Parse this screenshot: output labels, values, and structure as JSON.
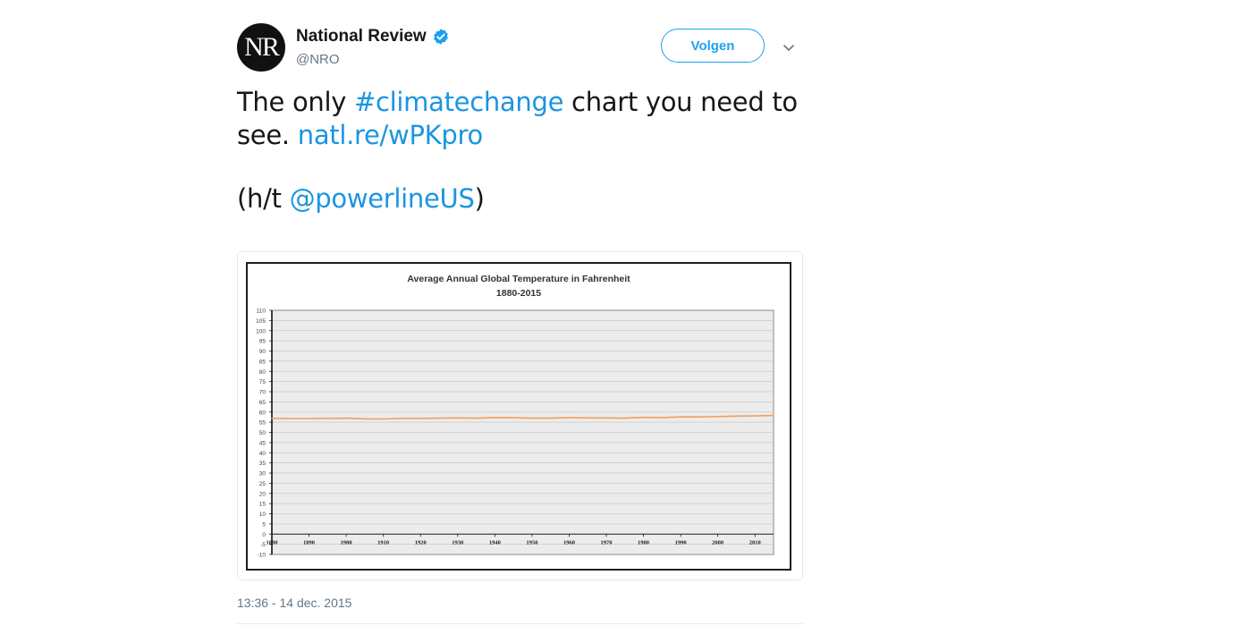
{
  "account": {
    "avatar_text": "NR",
    "display_name": "National Review",
    "handle": "@NRO",
    "verified_icon": "verified-badge-icon"
  },
  "follow_button": {
    "label": "Volgen"
  },
  "menu_icon": "chevron-down-icon",
  "tweet": {
    "line1_prefix": "The only ",
    "line1_hashtag": "#climatechange",
    "line1_suffix": " chart you need to",
    "line2_prefix": "see. ",
    "line2_link": "natl.re/wPKpro",
    "line3_prefix": "(h/t ",
    "line3_mention": "@powerlineUS",
    "line3_suffix": ")"
  },
  "timestamp": "13:36 - 14 dec. 2015",
  "colors": {
    "link": "#1b95e0",
    "follow": "#1da1f2",
    "series": "#f0a060"
  },
  "chart_data": {
    "type": "line",
    "title": "Average Annual Global Temperature in Fahrenheit",
    "subtitle": "1880-2015",
    "xlabel": "",
    "ylabel": "",
    "xlim": [
      1880,
      2015
    ],
    "ylim": [
      -10,
      110
    ],
    "grid": true,
    "x_ticks": [
      1880,
      1890,
      1900,
      1910,
      1920,
      1930,
      1940,
      1950,
      1960,
      1970,
      1980,
      1990,
      2000,
      2010
    ],
    "x_tick_labels": [
      "1880",
      "1890",
      "1900",
      "1910",
      "1920",
      "1930",
      "1940",
      "1950",
      "1960",
      "1970",
      "1980",
      "1990",
      "2000",
      "2010"
    ],
    "y_ticks": [
      -10,
      -5,
      0,
      5,
      10,
      15,
      20,
      25,
      30,
      35,
      40,
      45,
      50,
      55,
      60,
      65,
      70,
      75,
      80,
      85,
      90,
      95,
      100,
      105,
      110
    ],
    "y_tick_labels": [
      "-10",
      "-5",
      "0",
      "5",
      "10",
      "15",
      "20",
      "25",
      "30",
      "35",
      "40",
      "45",
      "50",
      "55",
      "60",
      "65",
      "70",
      "75",
      "80",
      "85",
      "90",
      "95",
      "100",
      "105",
      "110"
    ],
    "series": [
      {
        "x": [
          1880,
          1885,
          1890,
          1895,
          1900,
          1905,
          1910,
          1915,
          1920,
          1925,
          1930,
          1935,
          1940,
          1945,
          1950,
          1955,
          1960,
          1965,
          1970,
          1975,
          1980,
          1985,
          1990,
          1995,
          2000,
          2005,
          2010,
          2015
        ],
        "values": [
          56.9,
          56.8,
          56.8,
          56.9,
          57.0,
          56.7,
          56.6,
          56.9,
          56.9,
          57.0,
          57.1,
          57.0,
          57.3,
          57.2,
          57.0,
          57.0,
          57.2,
          57.1,
          57.1,
          57.0,
          57.4,
          57.3,
          57.6,
          57.6,
          57.8,
          58.0,
          58.1,
          58.3
        ]
      }
    ]
  }
}
